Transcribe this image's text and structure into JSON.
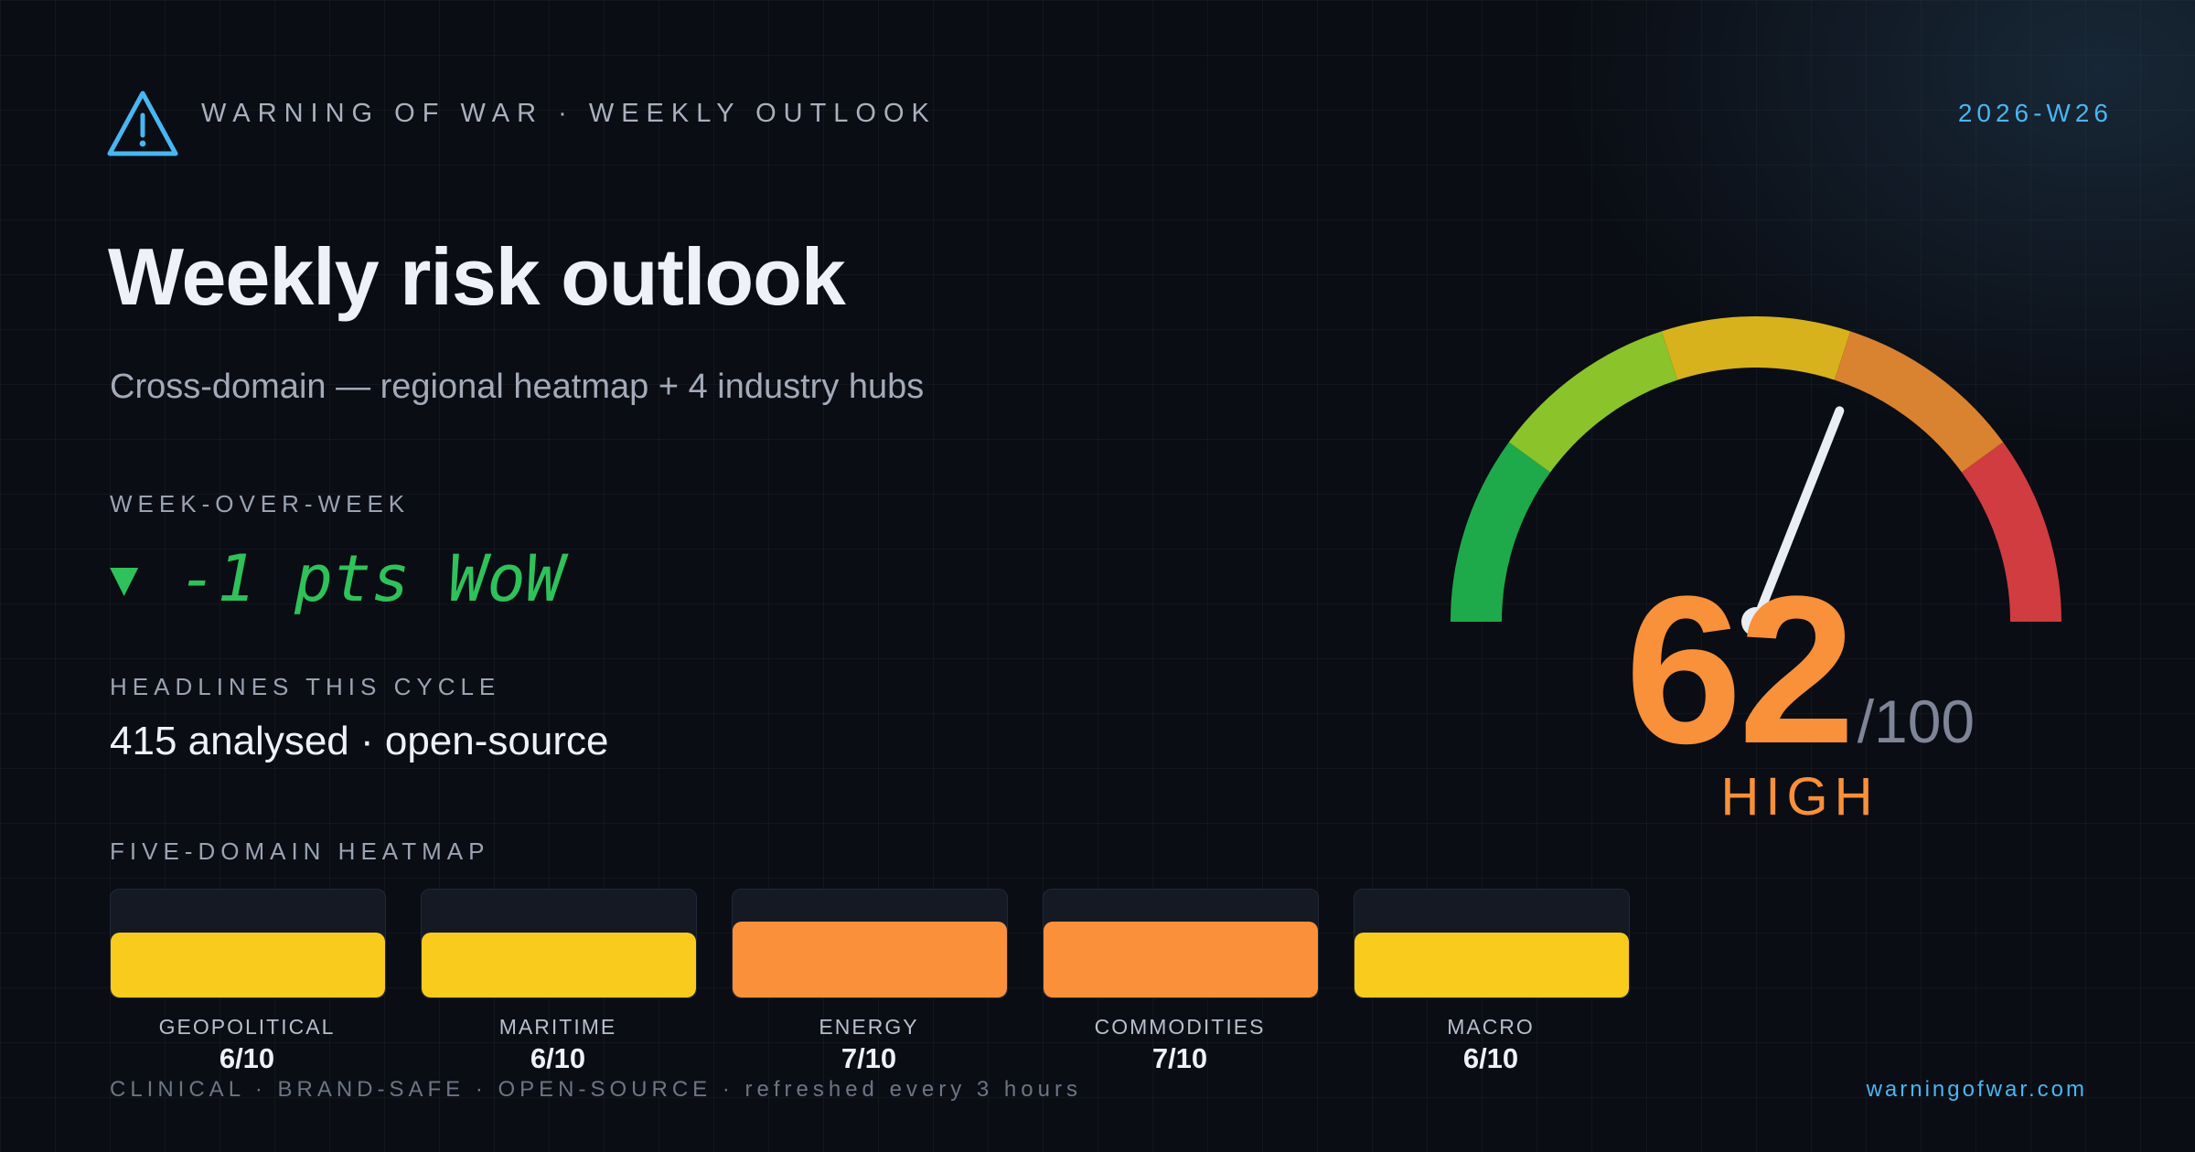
{
  "header": {
    "brand": "WARNING OF WAR · WEEKLY OUTLOOK",
    "week": "2026-W26",
    "icon": "warning-triangle-icon"
  },
  "main": {
    "title": "Weekly risk outlook",
    "subtitle": "Cross-domain — regional heatmap + 4 industry hubs"
  },
  "wow": {
    "label": "WEEK-OVER-WEEK",
    "arrow": "▼",
    "text": "-1 pts WoW",
    "color": "#2fc15a"
  },
  "headlines": {
    "label": "HEADLINES THIS CYCLE",
    "value": "415 analysed · open-source"
  },
  "heatmap": {
    "label": "FIVE-DOMAIN HEATMAP",
    "domains": [
      {
        "name": "GEOPOLITICAL",
        "score": "6/10",
        "value": 6,
        "color": "#f9cb1c"
      },
      {
        "name": "MARITIME",
        "score": "6/10",
        "value": 6,
        "color": "#f9cb1c"
      },
      {
        "name": "ENERGY",
        "score": "7/10",
        "value": 7,
        "color": "#fa913a"
      },
      {
        "name": "COMMODITIES",
        "score": "7/10",
        "value": 7,
        "color": "#fa913a"
      },
      {
        "name": "MACRO",
        "score": "6/10",
        "value": 6,
        "color": "#f9cb1c"
      }
    ]
  },
  "gauge": {
    "score": "62",
    "denominator": "/100",
    "value": 62,
    "max": 100,
    "level": "HIGH",
    "accent": "#f9903a",
    "band_colors": [
      "#1eaa4a",
      "#8bc32a",
      "#d7b21c",
      "#d9822f",
      "#d03c40"
    ]
  },
  "footer": {
    "text": "CLINICAL · BRAND-SAFE · OPEN-SOURCE · refreshed every 3 hours",
    "site": "warningofwar.com"
  }
}
